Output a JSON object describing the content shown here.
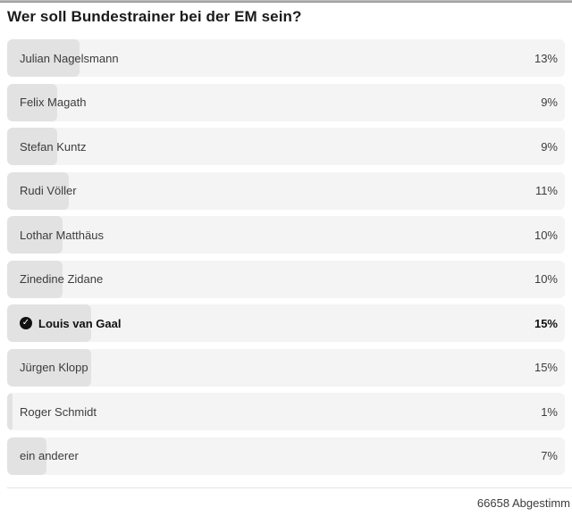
{
  "poll": {
    "title": "Wer soll Bundestrainer bei der EM sein?",
    "footer": "66658 Abgestimm",
    "options": [
      {
        "label": "Julian Nagelsmann",
        "percent": "13%",
        "value": 13,
        "selected": false
      },
      {
        "label": "Felix Magath",
        "percent": "9%",
        "value": 9,
        "selected": false
      },
      {
        "label": "Stefan Kuntz",
        "percent": "9%",
        "value": 9,
        "selected": false
      },
      {
        "label": "Rudi Völler",
        "percent": "11%",
        "value": 11,
        "selected": false
      },
      {
        "label": "Lothar Matthäus",
        "percent": "10%",
        "value": 10,
        "selected": false
      },
      {
        "label": "Zinedine Zidane",
        "percent": "10%",
        "value": 10,
        "selected": false
      },
      {
        "label": "Louis van Gaal",
        "percent": "15%",
        "value": 15,
        "selected": true
      },
      {
        "label": "Jürgen Klopp",
        "percent": "15%",
        "value": 15,
        "selected": false
      },
      {
        "label": "Roger Schmidt",
        "percent": "1%",
        "value": 1,
        "selected": false
      },
      {
        "label": "ein anderer",
        "percent": "7%",
        "value": 7,
        "selected": false
      }
    ]
  },
  "icons": {
    "check": "✓"
  },
  "colors": {
    "row_background": "#f4f4f4",
    "bar_fill": "#e2e2e2",
    "selected_icon": "#111111",
    "text": "#3c3c3c",
    "title_text": "#1a1a1a",
    "divider": "#e4e4e4",
    "top_strip": "#8e8e8e"
  },
  "chart_data": {
    "type": "bar",
    "orientation": "horizontal",
    "title": "Wer soll Bundestrainer bei der EM sein?",
    "categories": [
      "Julian Nagelsmann",
      "Felix Magath",
      "Stefan Kuntz",
      "Rudi Völler",
      "Lothar Matthäus",
      "Zinedine Zidane",
      "Louis van Gaal",
      "Jürgen Klopp",
      "Roger Schmidt",
      "ein anderer"
    ],
    "values": [
      13,
      9,
      9,
      11,
      10,
      10,
      15,
      15,
      1,
      7
    ],
    "unit": "%",
    "xlim": [
      0,
      100
    ],
    "selected_category": "Louis van Gaal",
    "annotation": "66658 Abgestimm"
  }
}
